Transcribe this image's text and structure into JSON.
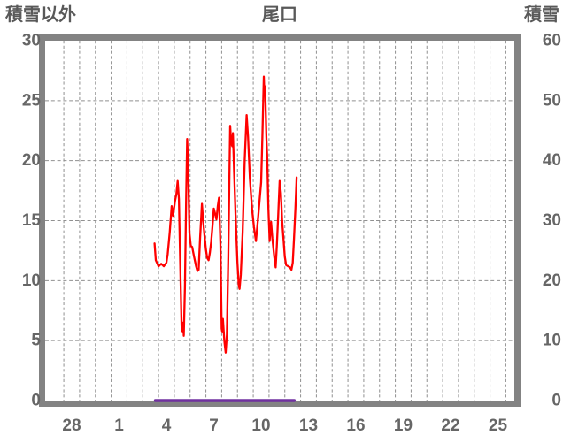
{
  "chart_data": {
    "type": "line",
    "title": "尾口",
    "left_axis": {
      "label": "積雪以外",
      "min": 0,
      "max": 30,
      "ticks": [
        30,
        25,
        20,
        15,
        10,
        5,
        0
      ],
      "grid_values": [
        25,
        20,
        15,
        10,
        5
      ]
    },
    "right_axis": {
      "label": "積雪",
      "min": 0,
      "max": 60,
      "ticks": [
        60,
        50,
        40,
        30,
        20,
        10,
        0
      ]
    },
    "x_axis": {
      "tick_labels": [
        "28",
        "1",
        "4",
        "7",
        "10",
        "13",
        "16",
        "19",
        "22",
        "25"
      ],
      "label_step_days": 3,
      "gridline_every_days": 1
    },
    "grid": true,
    "legend": "none",
    "colors": {
      "frame": "#838383",
      "grid": "#909090",
      "tick_text": "#666666",
      "header_text": "#595959",
      "background": "#ffffff",
      "red_series": "#ff0000",
      "purple_series": "#7030a0"
    },
    "series": [
      {
        "key": "non-snow-red-line",
        "name": "積雪以外",
        "axis": "left",
        "color": "#ff0000",
        "points": [
          [
            3.25,
            13.1
          ],
          [
            3.33,
            11.7
          ],
          [
            3.5,
            11.2
          ],
          [
            3.67,
            11.4
          ],
          [
            3.83,
            11.2
          ],
          [
            4.0,
            11.5
          ],
          [
            4.08,
            12.2
          ],
          [
            4.21,
            14.0
          ],
          [
            4.33,
            16.2
          ],
          [
            4.42,
            15.4
          ],
          [
            4.54,
            16.6
          ],
          [
            4.63,
            17.2
          ],
          [
            4.71,
            18.3
          ],
          [
            4.79,
            16.8
          ],
          [
            4.88,
            11.0
          ],
          [
            4.96,
            6.2
          ],
          [
            5.02,
            5.7
          ],
          [
            5.06,
            6.5
          ],
          [
            5.1,
            5.4
          ],
          [
            5.17,
            9.5
          ],
          [
            5.25,
            17.0
          ],
          [
            5.31,
            21.8
          ],
          [
            5.38,
            19.5
          ],
          [
            5.46,
            14.0
          ],
          [
            5.54,
            12.9
          ],
          [
            5.63,
            12.8
          ],
          [
            5.75,
            12.0
          ],
          [
            5.88,
            11.2
          ],
          [
            5.96,
            10.8
          ],
          [
            6.04,
            10.9
          ],
          [
            6.13,
            13.5
          ],
          [
            6.25,
            16.4
          ],
          [
            6.33,
            15.0
          ],
          [
            6.42,
            13.6
          ],
          [
            6.5,
            12.6
          ],
          [
            6.58,
            11.9
          ],
          [
            6.67,
            11.7
          ],
          [
            6.75,
            12.3
          ],
          [
            6.83,
            13.2
          ],
          [
            6.92,
            14.6
          ],
          [
            7.0,
            16.0
          ],
          [
            7.08,
            15.6
          ],
          [
            7.17,
            15.1
          ],
          [
            7.25,
            16.2
          ],
          [
            7.33,
            16.9
          ],
          [
            7.42,
            13.0
          ],
          [
            7.5,
            6.0
          ],
          [
            7.54,
            5.7
          ],
          [
            7.58,
            6.8
          ],
          [
            7.67,
            5.0
          ],
          [
            7.75,
            4.0
          ],
          [
            7.83,
            5.5
          ],
          [
            7.92,
            12.0
          ],
          [
            8.0,
            19.5
          ],
          [
            8.04,
            22.9
          ],
          [
            8.1,
            21.5
          ],
          [
            8.17,
            21.2
          ],
          [
            8.21,
            22.3
          ],
          [
            8.29,
            19.0
          ],
          [
            8.38,
            15.5
          ],
          [
            8.5,
            11.5
          ],
          [
            8.58,
            9.6
          ],
          [
            8.63,
            9.3
          ],
          [
            8.71,
            10.5
          ],
          [
            8.83,
            14.0
          ],
          [
            8.96,
            20.0
          ],
          [
            9.08,
            23.8
          ],
          [
            9.17,
            22.0
          ],
          [
            9.29,
            18.5
          ],
          [
            9.42,
            16.0
          ],
          [
            9.54,
            14.5
          ],
          [
            9.67,
            13.3
          ],
          [
            9.79,
            15.0
          ],
          [
            9.92,
            17.0
          ],
          [
            10.0,
            18.2
          ],
          [
            10.08,
            22.0
          ],
          [
            10.17,
            27.0
          ],
          [
            10.21,
            25.5
          ],
          [
            10.25,
            26.2
          ],
          [
            10.33,
            22.0
          ],
          [
            10.38,
            20.4
          ],
          [
            10.46,
            16.0
          ],
          [
            10.54,
            13.3
          ],
          [
            10.63,
            14.9
          ],
          [
            10.71,
            13.5
          ],
          [
            10.83,
            12.0
          ],
          [
            10.92,
            11.1
          ],
          [
            11.0,
            13.0
          ],
          [
            11.08,
            15.5
          ],
          [
            11.17,
            18.3
          ],
          [
            11.25,
            17.3
          ],
          [
            11.33,
            15.0
          ],
          [
            11.42,
            13.4
          ],
          [
            11.5,
            12.0
          ],
          [
            11.58,
            11.3
          ],
          [
            11.71,
            11.2
          ],
          [
            11.83,
            11.1
          ],
          [
            11.92,
            10.9
          ],
          [
            12.0,
            11.5
          ],
          [
            12.08,
            13.5
          ],
          [
            12.17,
            16.0
          ],
          [
            12.25,
            18.6
          ]
        ]
      },
      {
        "key": "snow-depth-purple-line",
        "name": "積雪",
        "axis": "right",
        "color": "#7030a0",
        "points": [
          [
            3.3,
            0
          ],
          [
            12.1,
            0
          ]
        ]
      }
    ]
  }
}
